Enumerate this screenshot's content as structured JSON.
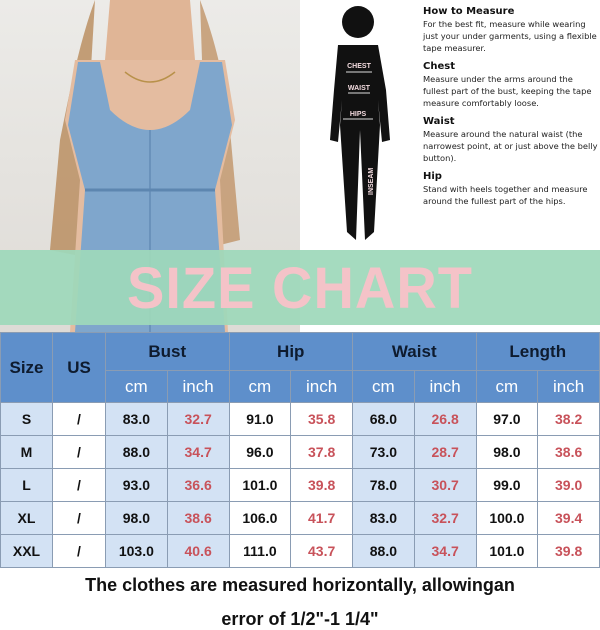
{
  "guide": {
    "sections": [
      {
        "title": "How to Measure",
        "text": "For the best fit, measure while wearing just your under garments, using a flexible tape measurer."
      },
      {
        "title": "Chest",
        "text": "Measure under the arms around the fullest part of the bust, keeping the tape measure comfortably loose."
      },
      {
        "title": "Waist",
        "text": "Measure around the natural waist (the narrowest point, at or just above the belly button)."
      },
      {
        "title": "Hip",
        "text": "Stand with heels together and measure around the fullest part of the hips."
      }
    ],
    "figure_labels": {
      "chest": "CHEST",
      "waist": "WAIST",
      "hips": "HIPS",
      "inseam": "INSEAM"
    }
  },
  "banner": {
    "title": "SIZE CHART"
  },
  "table": {
    "headers": {
      "size": "Size",
      "us": "US",
      "groups": [
        "Bust",
        "Hip",
        "Waist",
        "Length"
      ],
      "units": [
        "cm",
        "inch"
      ]
    },
    "rows": [
      {
        "size": "S",
        "us": "/",
        "values": [
          "83.0",
          "32.7",
          "91.0",
          "35.8",
          "68.0",
          "26.8",
          "97.0",
          "38.2"
        ]
      },
      {
        "size": "M",
        "us": "/",
        "values": [
          "88.0",
          "34.7",
          "96.0",
          "37.8",
          "73.0",
          "28.7",
          "98.0",
          "38.6"
        ]
      },
      {
        "size": "L",
        "us": "/",
        "values": [
          "93.0",
          "36.6",
          "101.0",
          "39.8",
          "78.0",
          "30.7",
          "99.0",
          "39.0"
        ]
      },
      {
        "size": "XL",
        "us": "/",
        "values": [
          "98.0",
          "38.6",
          "106.0",
          "41.7",
          "83.0",
          "32.7",
          "100.0",
          "39.4"
        ]
      },
      {
        "size": "XXL",
        "us": "/",
        "values": [
          "103.0",
          "40.6",
          "111.0",
          "43.7",
          "88.0",
          "34.7",
          "101.0",
          "39.8"
        ]
      }
    ]
  },
  "footer": {
    "line1": "The clothes are measured horizontally, allowingan",
    "line2": "error of 1/2\"-1 1/4\""
  },
  "colors": {
    "header_blue": "#5e8fcb",
    "inch_red": "#c8525a",
    "banner_green": "#9ed8ba",
    "banner_text_pink": "#f4c3c8"
  }
}
